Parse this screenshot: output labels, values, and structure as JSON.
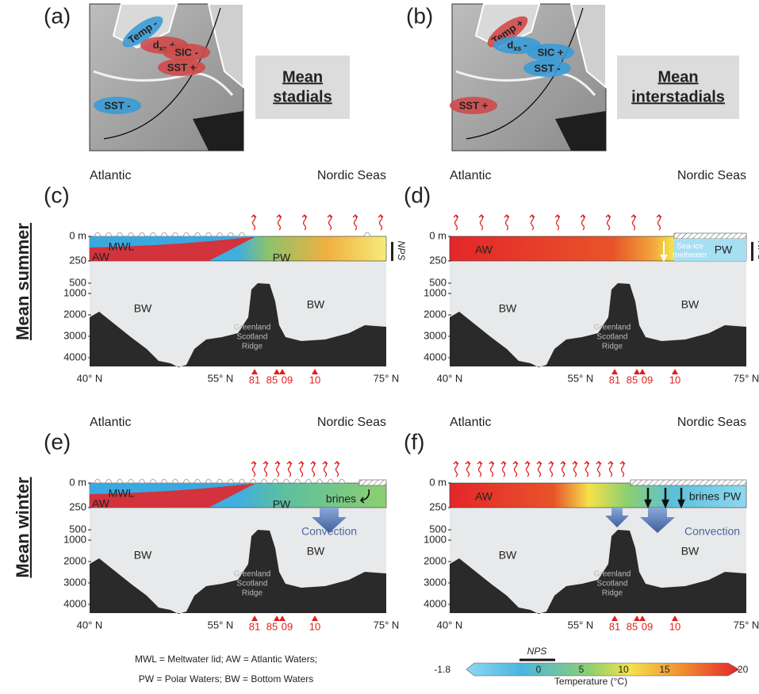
{
  "maps": [
    {
      "label": "(a)",
      "box": [
        "Mean",
        "stadials"
      ],
      "ellipses": [
        {
          "text": "Temp -"
        },
        {
          "main": "d",
          "sub": "xs",
          "sign": "+"
        },
        {
          "text": "SIC -"
        },
        {
          "text": "SST +"
        },
        {
          "text": "SST -"
        }
      ]
    },
    {
      "label": "(b)",
      "box": [
        "Mean",
        "interstadials"
      ],
      "ellipses": [
        {
          "text": "Temp +"
        },
        {
          "main": "d",
          "sub": "xs",
          "sign": "-"
        },
        {
          "text": "SIC +"
        },
        {
          "text": "SST -"
        },
        {
          "text": "SST +"
        }
      ]
    }
  ],
  "rows": [
    "Mean summer",
    "Mean winter"
  ],
  "axes": {
    "depths": [
      "0 m",
      "250",
      "500",
      "1000",
      "2000",
      "3000",
      "4000"
    ],
    "lats": [
      "40° N",
      "55° N",
      "75° N"
    ],
    "cores": [
      "81",
      "85",
      "09",
      "10"
    ],
    "ridge": [
      "Greenland",
      "Scotland",
      "Ridge"
    ],
    "left": "Atlantic",
    "right": "Nordic Seas"
  },
  "sections": [
    {
      "label": "(c)",
      "waters": [
        "MWL",
        "AW",
        "PW",
        "BW",
        "BW"
      ],
      "nps": "NPS"
    },
    {
      "label": "(d)",
      "waters": [
        "AW",
        "PW",
        "BW",
        "BW"
      ],
      "meltwater": [
        "Sea-ice",
        "meltwater"
      ],
      "nps": "NPS"
    },
    {
      "label": "(e)",
      "waters": [
        "MWL",
        "AW",
        "PW",
        "BW",
        "BW"
      ],
      "brines": "brines",
      "convection": "Convection"
    },
    {
      "label": "(f)",
      "waters": [
        "AW",
        "PW",
        "BW",
        "BW"
      ],
      "brines": "brines",
      "convection": "Convection"
    }
  ],
  "legend": [
    "MWL = Meltwater lid; AW = Atlantic Waters;",
    "PW = Polar Waters; BW = Bottom Waters"
  ],
  "colorbar": {
    "marker": "NPS",
    "ticks": [
      "-1.8",
      "0",
      "5",
      "10",
      "15",
      "20"
    ],
    "title": "Temperature (°C)"
  }
}
